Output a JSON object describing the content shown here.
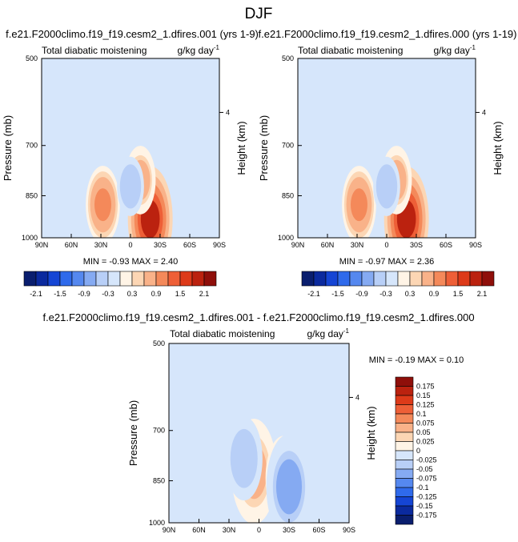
{
  "figure": {
    "title": "DJF"
  },
  "chart_data": [
    {
      "type": "heatmap",
      "title": "f.e21.F2000climo.f19_f19.cesm2_1.dfires.001 (yrs 1-9)",
      "left_label": "Total diabatic moistening",
      "right_label": "g/kg day",
      "right_label_sup": "-1",
      "ylabel": "Pressure (mb)",
      "ylabel_right": "Height (km)",
      "xticks": [
        "90N",
        "60N",
        "30N",
        "0",
        "30S",
        "60S",
        "90S"
      ],
      "yticks": [
        "500",
        "700",
        "850",
        "1000"
      ],
      "yticks_right": [
        "4"
      ],
      "stats": "MIN = -0.93  MAX =  2.40",
      "features": [
        {
          "lat": -20,
          "p": 930,
          "value": 2.1
        },
        {
          "lat": -10,
          "p": 800,
          "value": 0.9
        },
        {
          "lat": 28,
          "p": 880,
          "value": 1.2
        },
        {
          "lat": 0,
          "p": 820,
          "value": -0.6
        },
        {
          "lat": -20,
          "p": 640,
          "value": -0.3
        },
        {
          "lat": 55,
          "p": 600,
          "value": -0.3
        }
      ]
    },
    {
      "type": "heatmap",
      "title": "f.e21.F2000climo.f19_f19.cesm2_1.dfires.000 (yrs 1-19)",
      "left_label": "Total diabatic moistening",
      "right_label": "g/kg day",
      "right_label_sup": "-1",
      "ylabel": "Pressure (mb)",
      "ylabel_right": "Height (km)",
      "xticks": [
        "90N",
        "60N",
        "30N",
        "0",
        "30S",
        "60S",
        "90S"
      ],
      "yticks": [
        "500",
        "700",
        "850",
        "1000"
      ],
      "yticks_right": [
        "4"
      ],
      "stats": "MIN = -0.97  MAX =  2.36",
      "features": [
        {
          "lat": -20,
          "p": 930,
          "value": 2.1
        },
        {
          "lat": -10,
          "p": 800,
          "value": 0.9
        },
        {
          "lat": 28,
          "p": 880,
          "value": 1.2
        },
        {
          "lat": 0,
          "p": 820,
          "value": -0.6
        },
        {
          "lat": -20,
          "p": 640,
          "value": -0.3
        },
        {
          "lat": 55,
          "p": 600,
          "value": -0.3
        }
      ]
    },
    {
      "type": "heatmap",
      "title": "f.e21.F2000climo.f19_f19.cesm2_1.dfires.001 - f.e21.F2000climo.f19_f19.cesm2_1.dfires.000",
      "left_label": "Total diabatic moistening",
      "right_label": "g/kg day",
      "right_label_sup": "-1",
      "ylabel": "Pressure (mb)",
      "ylabel_right": "Height (km)",
      "xticks": [
        "90N",
        "60N",
        "30N",
        "0",
        "30S",
        "60S",
        "90S"
      ],
      "yticks": [
        "500",
        "700",
        "850",
        "1000"
      ],
      "yticks_right": [
        "4"
      ],
      "stats": "MIN = -0.19  MAX =  0.10",
      "features": [
        {
          "lat": 5,
          "p": 820,
          "value": 0.075
        },
        {
          "lat": -25,
          "p": 840,
          "value": 0.05
        },
        {
          "lat": -30,
          "p": 870,
          "value": -0.075
        },
        {
          "lat": 15,
          "p": 780,
          "value": -0.05
        },
        {
          "lat": 40,
          "p": 700,
          "value": -0.025
        },
        {
          "lat": -55,
          "p": 650,
          "value": -0.025
        }
      ]
    }
  ],
  "colorbar_top": {
    "labels": [
      "-2.1",
      "-1.5",
      "-0.9",
      "-0.3",
      "0.3",
      "0.9",
      "1.5",
      "2.1"
    ],
    "colors": [
      "#0a1e6e",
      "#0b2a9e",
      "#1545d4",
      "#2f6aeb",
      "#5588ef",
      "#85aaf2",
      "#b8cff7",
      "#d6e6fb",
      "#fff4e6",
      "#fcd6b4",
      "#f9b289",
      "#f4895a",
      "#ee5f37",
      "#dd3a19",
      "#bb220f",
      "#8f0f0a"
    ]
  },
  "colorbar_diff": {
    "labels": [
      "0.175",
      "0.15",
      "0.125",
      "0.1",
      "0.075",
      "0.05",
      "0.025",
      "0",
      "-0.025",
      "-0.05",
      "-0.075",
      "-0.1",
      "-0.125",
      "-0.15",
      "-0.175"
    ],
    "colors": [
      "#8f0f0a",
      "#bb220f",
      "#dd3a19",
      "#ee5f37",
      "#f4895a",
      "#f9b289",
      "#fcd6b4",
      "#fff4e6",
      "#d6e6fb",
      "#b8cff7",
      "#85aaf2",
      "#5588ef",
      "#2f6aeb",
      "#1545d4",
      "#0b2a9e",
      "#0a1e6e"
    ]
  },
  "colors": {
    "background": "#d6e6fb",
    "neutral_pos": "#fff4e6",
    "frame": "#000000"
  }
}
